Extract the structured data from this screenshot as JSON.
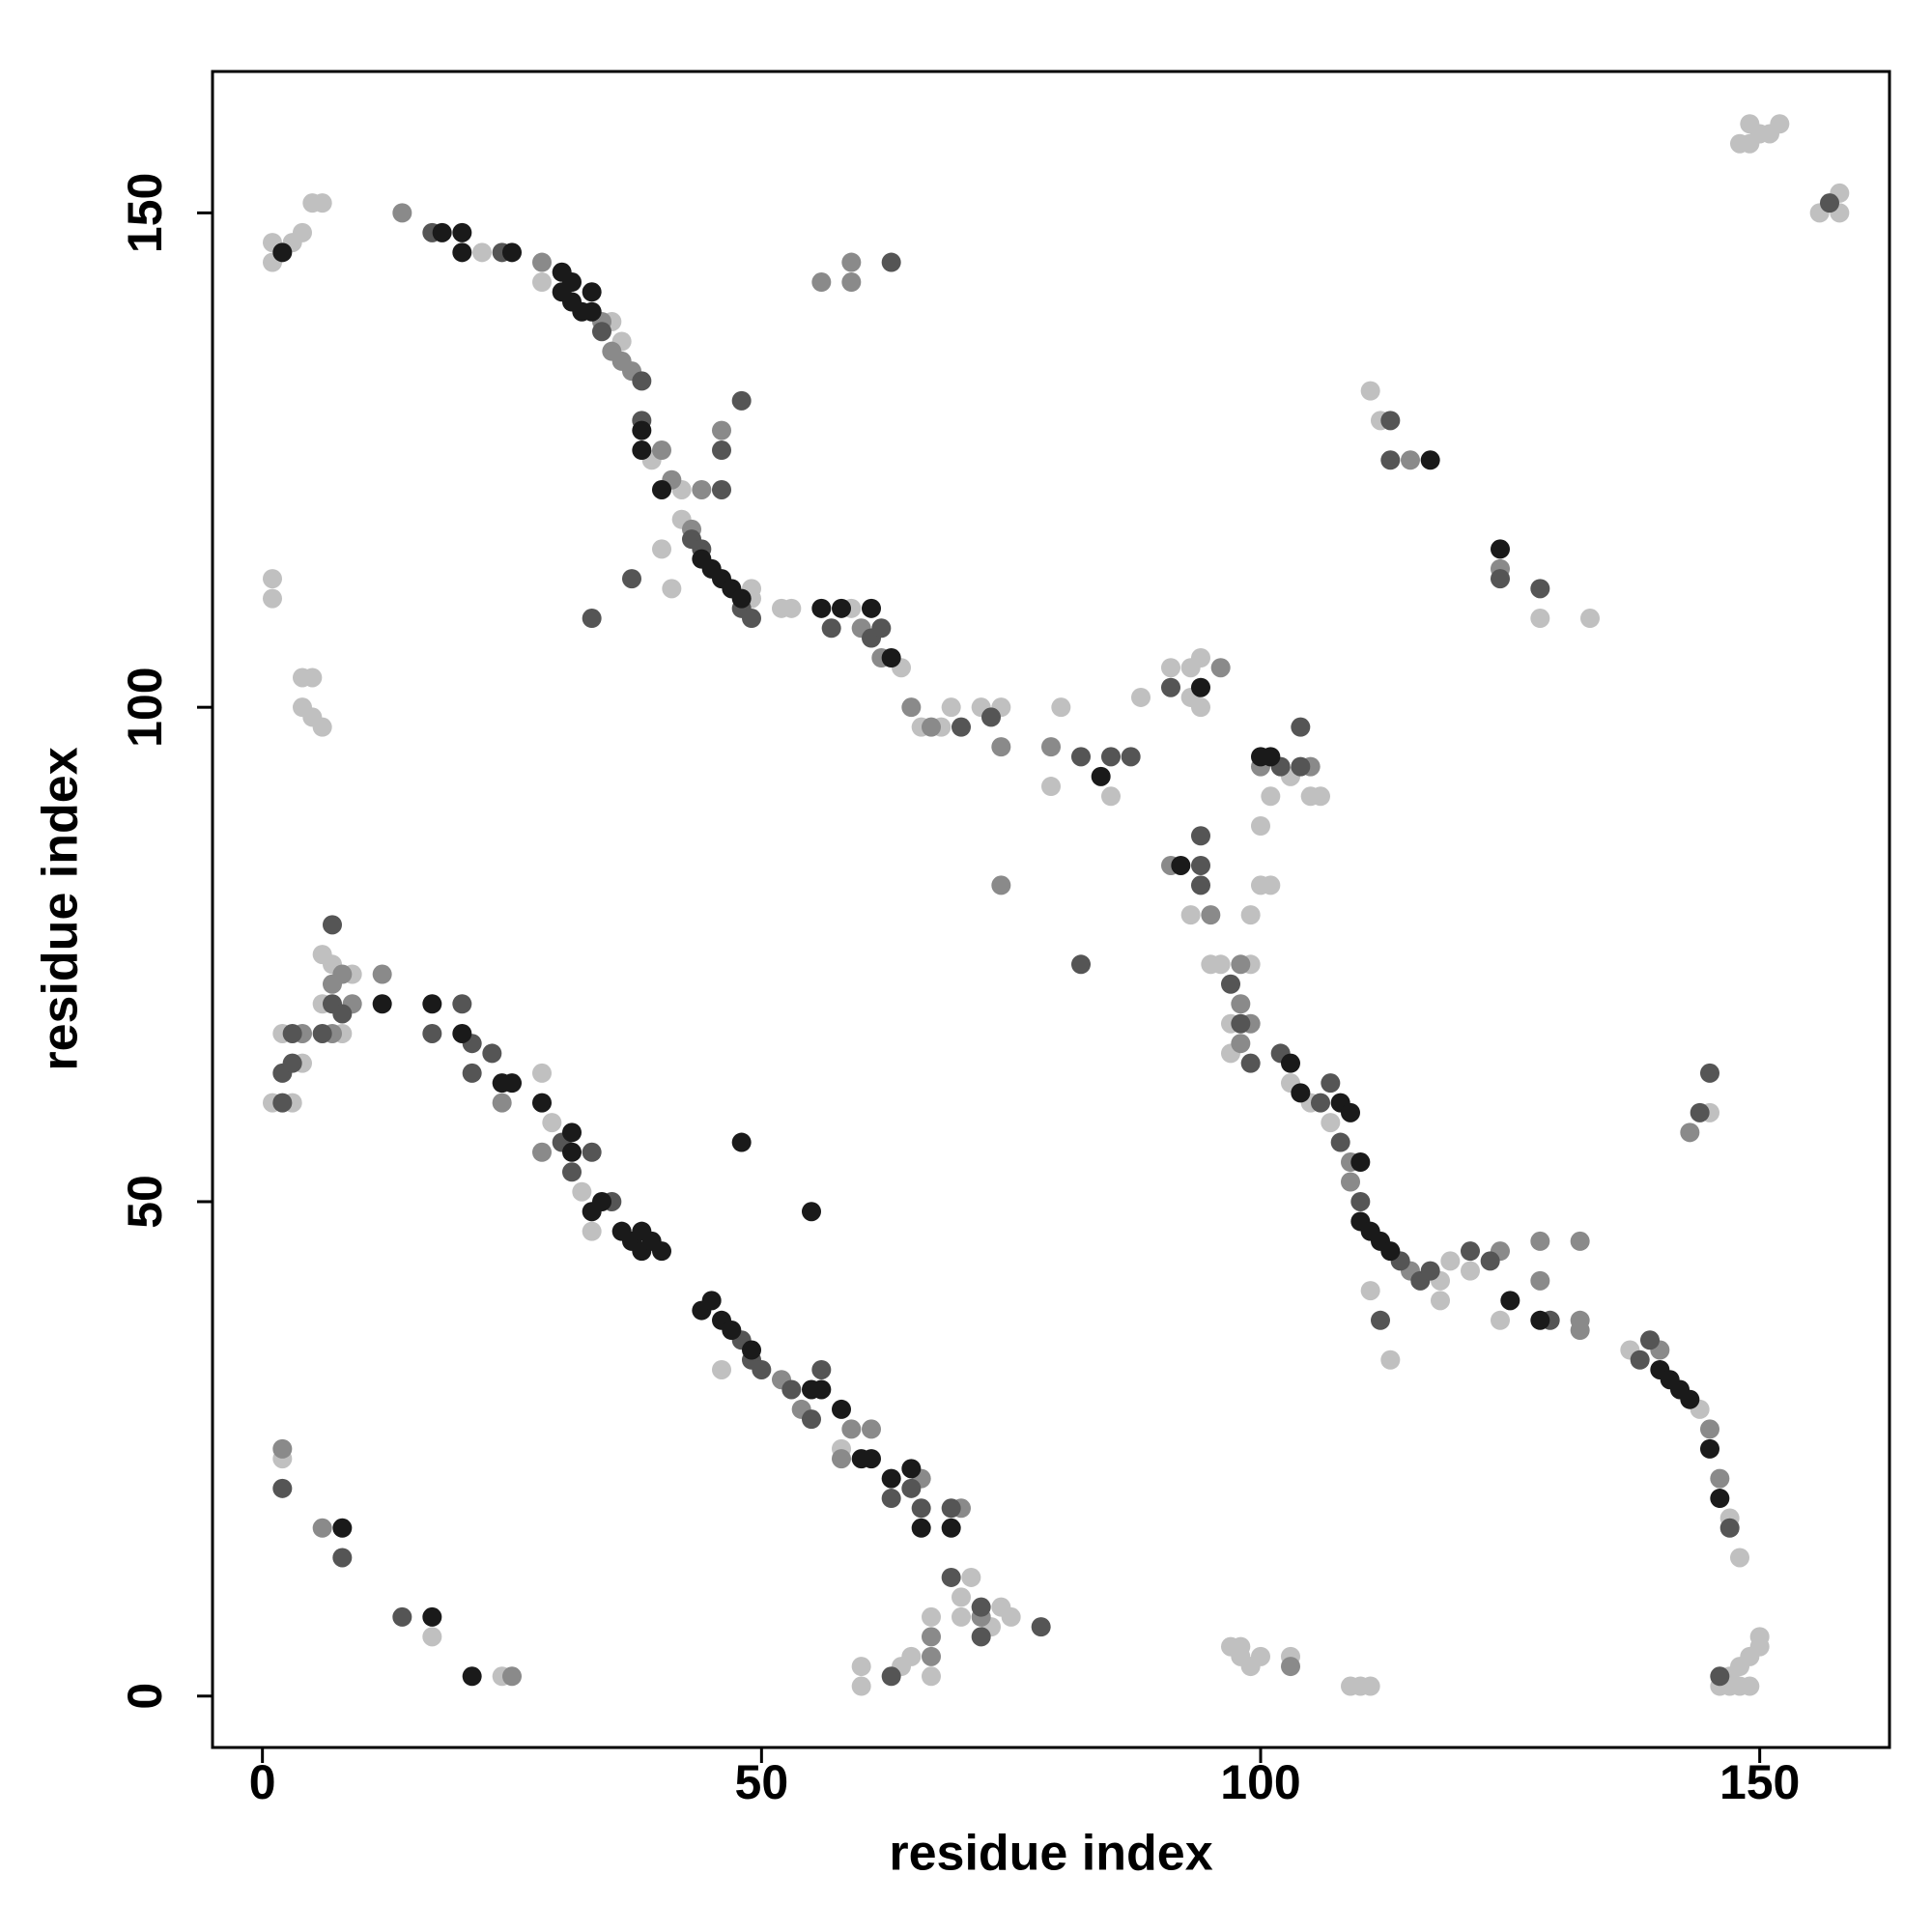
{
  "chart_data": {
    "type": "scatter",
    "xlabel": "residue index",
    "ylabel": "residue index",
    "xlim": [
      -5,
      163
    ],
    "ylim": [
      -5.2,
      164.3
    ],
    "xticks": [
      0,
      50,
      100,
      150
    ],
    "yticks": [
      0,
      50,
      100,
      150
    ],
    "series": [
      {
        "color": "#c0c0c0",
        "x": [
          22,
          28,
          35,
          36,
          39,
          42,
          42,
          49,
          52,
          53,
          59,
          64,
          66,
          68,
          69,
          72,
          74,
          80,
          79,
          85,
          40,
          41,
          49,
          91,
          93,
          93,
          94,
          94,
          88,
          103,
          101,
          105,
          106,
          100,
          100,
          101,
          93,
          99,
          95,
          96,
          99,
          97,
          97,
          103,
          105,
          107,
          118,
          119,
          121,
          124,
          137,
          144,
          147,
          148,
          111,
          113,
          145,
          118,
          128,
          133,
          111,
          112,
          148,
          149,
          150,
          151,
          149,
          152,
          156,
          158,
          158,
          1,
          1,
          3,
          4,
          5,
          6,
          1,
          1,
          4,
          5,
          4,
          6,
          5,
          1,
          3,
          2,
          4,
          8,
          6,
          9,
          7,
          6,
          28,
          29,
          32,
          33,
          46,
          58,
          70,
          70,
          71,
          73,
          74,
          75,
          67,
          64,
          65,
          60,
          60,
          67,
          2,
          17,
          24,
          97,
          98,
          98,
          99,
          100,
          103,
          109,
          110,
          111,
          147,
          148,
          149,
          148,
          149,
          150,
          150,
          146,
          147
        ],
        "y": [
          146,
          143,
          139,
          137,
          125,
          122,
          119,
          111,
          110,
          110,
          110,
          104,
          98,
          98,
          100,
          100,
          100,
          100,
          92,
          91,
          116,
          112,
          112,
          104,
          104,
          101,
          105,
          100,
          101,
          93,
          91,
          91,
          91,
          88,
          82,
          82,
          79,
          79,
          74,
          74,
          74,
          68,
          65,
          62,
          60,
          58,
          42,
          44,
          43,
          38,
          35,
          29,
          18,
          14,
          41,
          34,
          59,
          40,
          109,
          109,
          132,
          129,
          157,
          157,
          158,
          158,
          159,
          159,
          150,
          152,
          150,
          147,
          145,
          147,
          148,
          151,
          151,
          113,
          111,
          103,
          103,
          100,
          98,
          99,
          60,
          60,
          67,
          64,
          67,
          70,
          73,
          74,
          75,
          63,
          58,
          51,
          47,
          33,
          25,
          10,
          8,
          12,
          7,
          9,
          8,
          8,
          3,
          4,
          3,
          1,
          2,
          24,
          6,
          2,
          5,
          5,
          4,
          3,
          4,
          4,
          1,
          1,
          1,
          1,
          1,
          1,
          3,
          4,
          6,
          5,
          1,
          2
        ]
      },
      {
        "color": "#8a8a8a",
        "x": [
          14,
          28,
          34,
          35,
          36,
          37,
          40,
          41,
          43,
          60,
          62,
          65,
          67,
          74,
          79,
          74,
          46,
          44,
          56,
          59,
          59,
          96,
          100,
          105,
          91,
          95,
          98,
          98,
          99,
          98,
          109,
          109,
          115,
          124,
          128,
          128,
          132,
          132,
          132,
          140,
          145,
          146,
          143,
          124,
          115,
          4,
          7,
          9,
          7,
          8,
          12,
          24,
          28,
          52,
          54,
          59,
          61,
          58,
          66,
          70,
          72,
          67,
          67,
          2,
          6,
          25,
          103
        ],
        "y": [
          150,
          145,
          139,
          136,
          135,
          134,
          126,
          123,
          118,
          108,
          105,
          100,
          98,
          96,
          96,
          82,
          128,
          122,
          143,
          145,
          143,
          104,
          94,
          94,
          84,
          79,
          74,
          70,
          68,
          66,
          54,
          52,
          43,
          45,
          46,
          42,
          38,
          37,
          46,
          35,
          27,
          22,
          57,
          114,
          125,
          67,
          67,
          70,
          72,
          73,
          73,
          60,
          55,
          32,
          29,
          27,
          27,
          24,
          22,
          19,
          8,
          6,
          4,
          25,
          17,
          2,
          3
        ]
      },
      {
        "color": "#555555",
        "x": [
          17,
          24,
          34,
          38,
          38,
          43,
          44,
          48,
          49,
          57,
          61,
          62,
          70,
          73,
          82,
          85,
          87,
          82,
          48,
          46,
          46,
          37,
          33,
          63,
          91,
          102,
          104,
          104,
          94,
          94,
          94,
          97,
          98,
          99,
          102,
          106,
          107,
          108,
          110,
          114,
          116,
          117,
          121,
          123,
          129,
          138,
          139,
          147,
          112,
          144,
          145,
          124,
          128,
          113,
          113,
          157,
          2,
          3,
          2,
          3,
          6,
          7,
          8,
          7,
          17,
          20,
          21,
          21,
          23,
          30,
          31,
          33,
          35,
          48,
          49,
          50,
          53,
          56,
          55,
          63,
          65,
          66,
          69,
          69,
          72,
          72,
          78,
          63,
          2,
          8,
          14,
          146
        ],
        "y": [
          148,
          146,
          138,
          133,
          129,
          117,
          116,
          110,
          109,
          108,
          107,
          108,
          98,
          99,
          95,
          95,
          95,
          74,
          131,
          126,
          122,
          113,
          109,
          145,
          102,
          94,
          94,
          98,
          87,
          84,
          82,
          72,
          68,
          64,
          65,
          60,
          62,
          56,
          50,
          44,
          42,
          43,
          45,
          44,
          38,
          34,
          36,
          17,
          38,
          59,
          63,
          113,
          112,
          129,
          125,
          151,
          60,
          67,
          63,
          64,
          67,
          70,
          69,
          78,
          67,
          70,
          66,
          63,
          65,
          56,
          53,
          55,
          50,
          36,
          34,
          33,
          31,
          33,
          28,
          20,
          21,
          19,
          19,
          12,
          9,
          6,
          7,
          2,
          21,
          14,
          8,
          2
        ]
      },
      {
        "color": "#1a1a1a",
        "x": [
          18,
          20,
          20,
          25,
          30,
          30,
          31,
          31,
          32,
          33,
          33,
          38,
          38,
          40,
          44,
          45,
          46,
          47,
          48,
          56,
          58,
          61,
          63,
          84,
          92,
          94,
          100,
          101,
          103,
          104,
          108,
          109,
          110,
          111,
          112,
          113,
          125,
          128,
          140,
          141,
          142,
          143,
          145,
          146,
          110,
          124,
          117,
          2,
          12,
          17,
          20,
          24,
          25,
          28,
          31,
          31,
          33,
          34,
          36,
          37,
          38,
          38,
          39,
          40,
          44,
          45,
          46,
          47,
          49,
          55,
          56,
          58,
          60,
          61,
          63,
          65,
          66,
          69,
          48,
          55,
          8,
          17,
          21
        ],
        "y": [
          148,
          148,
          146,
          146,
          144,
          142,
          143,
          141,
          140,
          142,
          140,
          128,
          126,
          122,
          115,
          114,
          113,
          112,
          111,
          110,
          110,
          110,
          105,
          93,
          84,
          102,
          95,
          95,
          64,
          61,
          60,
          59,
          48,
          47,
          46,
          45,
          40,
          38,
          33,
          32,
          31,
          30,
          25,
          20,
          54,
          116,
          125,
          146,
          70,
          70,
          67,
          62,
          62,
          60,
          57,
          55,
          49,
          50,
          47,
          46,
          47,
          45,
          46,
          45,
          39,
          40,
          38,
          37,
          35,
          31,
          31,
          29,
          24,
          24,
          22,
          23,
          17,
          17,
          56,
          49,
          17,
          8,
          2
        ]
      }
    ]
  }
}
